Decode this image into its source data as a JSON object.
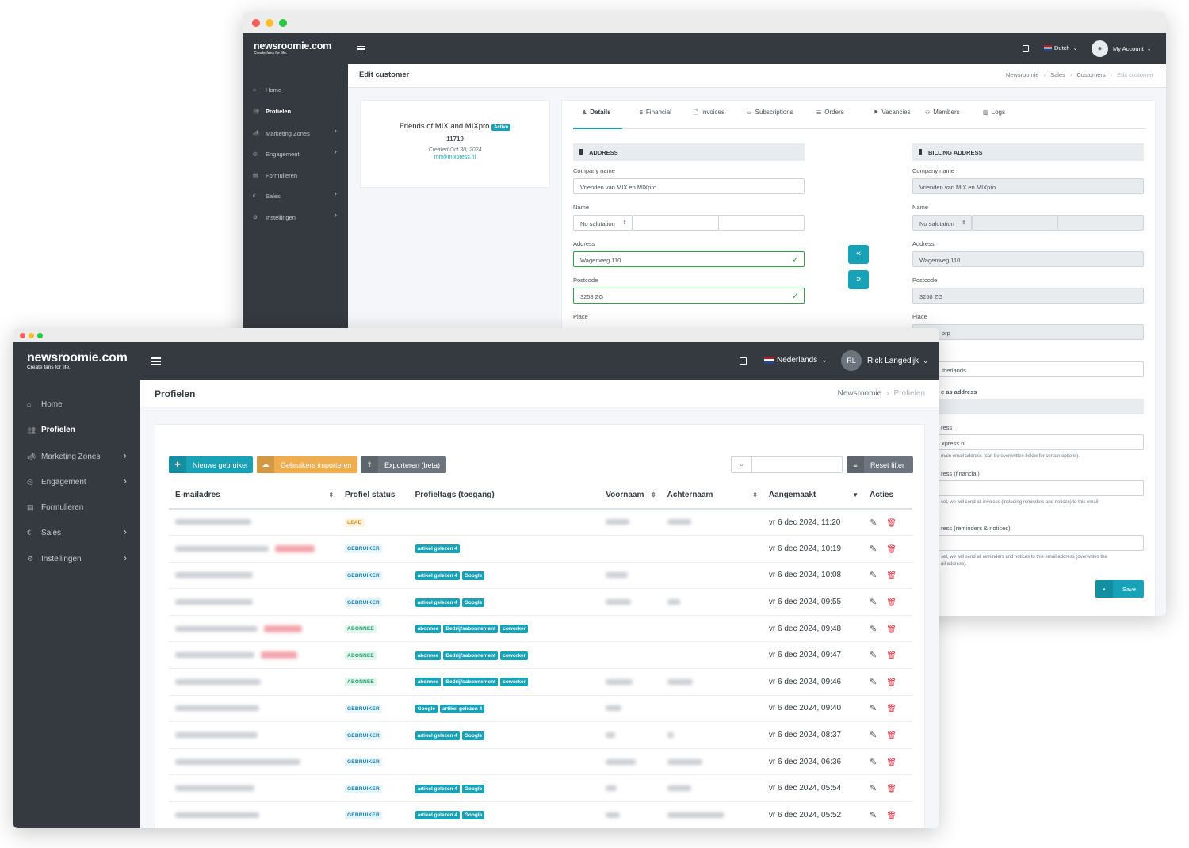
{
  "back_window": {
    "brand": {
      "name": "newsroomie.com",
      "tagline": "Create fans for life."
    },
    "navbar": {
      "language": "Dutch",
      "account": "My Account"
    },
    "sidebar": [
      {
        "label": "Home",
        "icon": "home-icon",
        "active": false,
        "chevron": false
      },
      {
        "label": "Profielen",
        "icon": "users-icon",
        "active": true,
        "chevron": false
      },
      {
        "label": "Marketing Zones",
        "icon": "megaphone-icon",
        "active": false,
        "chevron": true
      },
      {
        "label": "Engagement",
        "icon": "engagement-icon",
        "active": false,
        "chevron": true
      },
      {
        "label": "Formulieren",
        "icon": "forms-icon",
        "active": false,
        "chevron": false
      },
      {
        "label": "Sales",
        "icon": "euro-icon",
        "active": false,
        "chevron": true
      },
      {
        "label": "Instellingen",
        "icon": "settings-icon",
        "active": false,
        "chevron": true
      }
    ],
    "page_title": "Edit customer",
    "breadcrumb": [
      "Newsroomie",
      "Sales",
      "Customers",
      "Edit customer"
    ],
    "customer": {
      "name": "Friends of MIX and MIXpro",
      "status": "Active",
      "id": "11719",
      "created": "Created Oct 30, 2024",
      "email": "mn@mixpress.nl"
    },
    "tabs": [
      {
        "label": "Details",
        "icon": "details-icon"
      },
      {
        "label": "Financial",
        "icon": "financial-icon"
      },
      {
        "label": "Invoices",
        "icon": "invoice-icon"
      },
      {
        "label": "Subscriptions",
        "icon": "calendar-icon"
      },
      {
        "label": "Orders",
        "icon": "orders-icon"
      },
      {
        "label": "Vacancies",
        "icon": "vacancies-icon"
      },
      {
        "label": "Members",
        "icon": "members-icon"
      },
      {
        "label": "Logs",
        "icon": "logs-icon"
      }
    ],
    "address": {
      "section": "ADDRESS",
      "company_label": "Company name",
      "company": "Vrienden van MIX en MIXpro",
      "name_label": "Name",
      "salutation": "No salutation",
      "address_label": "Address",
      "address": "Wagenweg 110",
      "postcode_label": "Postcode",
      "postcode": "3258 ZG",
      "place_label": "Place"
    },
    "billing": {
      "section": "BILLING ADDRESS",
      "company_label": "Company name",
      "company": "Vrienden van MIX en MIXpro",
      "name_label": "Name",
      "salutation": "No salutation",
      "address_label": "Address",
      "address": "Wagenweg 110",
      "postcode_label": "Postcode",
      "postcode": "3258 ZG",
      "place_label": "Place",
      "place": "orp",
      "country": "therlands",
      "same_as": "e as address",
      "email_label": "ress",
      "email": "xpress.nl",
      "email_help": "main email address (can be overwritten below for certain options).",
      "financial_label": "ress (financial)",
      "financial_help": "set, we will send all invoices (including reminders and notices) to this email",
      "reminders_label": "ress (reminders & notices)",
      "reminders_help_1": "set, we will send all reminders and notices to this email address (overwrites the",
      "reminders_help_2": "ail address).",
      "save": "Save"
    },
    "copy_left": "«",
    "copy_right": "»"
  },
  "front_window": {
    "brand": {
      "name": "newsroomie.com",
      "tagline": "Create fans for life."
    },
    "navbar": {
      "language": "Nederlands",
      "avatar_initials": "RL",
      "user": "Rick Langedijk"
    },
    "sidebar": [
      {
        "label": "Home",
        "icon": "home-icon",
        "active": false,
        "chevron": false
      },
      {
        "label": "Profielen",
        "icon": "users-icon",
        "active": true,
        "chevron": false
      },
      {
        "label": "Marketing Zones",
        "icon": "megaphone-icon",
        "active": false,
        "chevron": true
      },
      {
        "label": "Engagement",
        "icon": "engagement-icon",
        "active": false,
        "chevron": true
      },
      {
        "label": "Formulieren",
        "icon": "forms-icon",
        "active": false,
        "chevron": false
      },
      {
        "label": "Sales",
        "icon": "euro-icon",
        "active": false,
        "chevron": true
      },
      {
        "label": "Instellingen",
        "icon": "settings-icon",
        "active": false,
        "chevron": true
      }
    ],
    "page_title": "Profielen",
    "breadcrumb": [
      "Newsroomie",
      "Profielen"
    ],
    "toolbar": {
      "new_user": "Nieuwe gebruiker",
      "import": "Gebruikers importeren",
      "export": "Exporteren (beta)",
      "reset": "Reset filter",
      "search_placeholder": ""
    },
    "table": {
      "headers": [
        "E-mailadres",
        "Profiel status",
        "Profieltags (toegang)",
        "Voornaam",
        "Achternaam",
        "Aangemaakt",
        "Acties"
      ],
      "rows": [
        {
          "status": "LEAD",
          "tags": [],
          "created": "vr 6 dec 2024, 11:20"
        },
        {
          "status": "GEBRUIKER",
          "tags": [
            "artikel gelezen 4"
          ],
          "created": "vr 6 dec 2024, 10:19"
        },
        {
          "status": "GEBRUIKER",
          "tags": [
            "artikel gelezen 4",
            "Google"
          ],
          "created": "vr 6 dec 2024, 10:08"
        },
        {
          "status": "GEBRUIKER",
          "tags": [
            "artikel gelezen 4",
            "Google"
          ],
          "created": "vr 6 dec 2024, 09:55"
        },
        {
          "status": "ABONNEE",
          "tags": [
            "abonnee",
            "Bedrijfsabonnement",
            "coworker"
          ],
          "created": "vr 6 dec 2024, 09:48"
        },
        {
          "status": "ABONNEE",
          "tags": [
            "abonnee",
            "Bedrijfsabonnement",
            "coworker"
          ],
          "created": "vr 6 dec 2024, 09:47"
        },
        {
          "status": "ABONNEE",
          "tags": [
            "abonnee",
            "Bedrijfsabonnement",
            "coworker"
          ],
          "created": "vr 6 dec 2024, 09:46"
        },
        {
          "status": "GEBRUIKER",
          "tags": [
            "Google",
            "artikel gelezen 4"
          ],
          "created": "vr 6 dec 2024, 09:40"
        },
        {
          "status": "GEBRUIKER",
          "tags": [
            "artikel gelezen 4",
            "Google"
          ],
          "created": "vr 6 dec 2024, 08:37"
        },
        {
          "status": "GEBRUIKER",
          "tags": [],
          "created": "vr 6 dec 2024, 06:36"
        },
        {
          "status": "GEBRUIKER",
          "tags": [
            "artikel gelezen 4",
            "Google"
          ],
          "created": "vr 6 dec 2024, 05:54"
        },
        {
          "status": "GEBRUIKER",
          "tags": [
            "artikel gelezen 4",
            "Google"
          ],
          "created": "vr 6 dec 2024, 05:52"
        }
      ]
    }
  },
  "colors": {
    "dark": "#343a40",
    "info": "#17a2b8",
    "warning": "#f0ad4e",
    "secondary": "#6c757d",
    "danger": "#dc3545",
    "success": "#28a745"
  }
}
